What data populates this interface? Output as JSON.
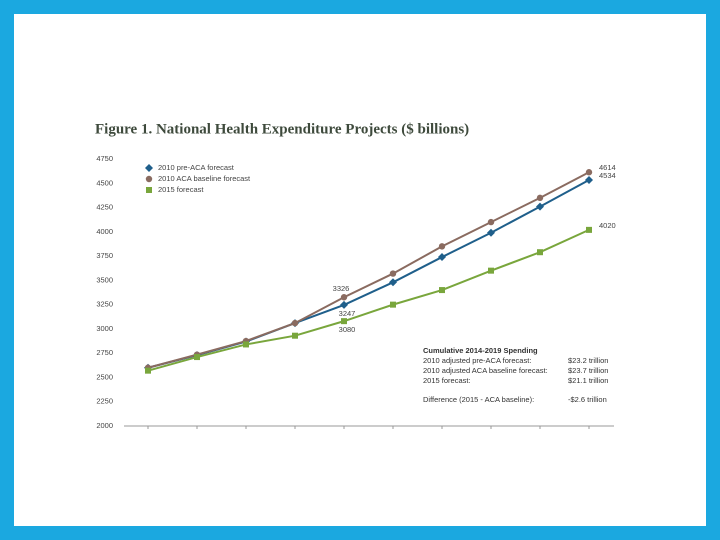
{
  "chart_data": {
    "type": "line",
    "title": "Figure 1. National Health Expenditure Projects ($ billions)",
    "categories": [
      null,
      null,
      null,
      null,
      null,
      null,
      null,
      null,
      null,
      null
    ],
    "ylim": [
      2000,
      4750
    ],
    "yticks": [
      2000,
      2250,
      2500,
      2750,
      3000,
      3250,
      3500,
      3750,
      4000,
      4250,
      4500,
      4750
    ],
    "legend": "top-left",
    "series": [
      {
        "name": "2010 pre-ACA forecast",
        "color": "#1f5f8b",
        "marker": "diamond",
        "labeled": [
          4,
          9
        ],
        "values": [
          2600,
          2730,
          2870,
          3060,
          3247,
          3480,
          3740,
          3990,
          4260,
          4534
        ]
      },
      {
        "name": "2010 ACA baseline forecast",
        "color": "#8a6b60",
        "marker": "circle",
        "labeled": [
          4,
          9
        ],
        "values": [
          2600,
          2735,
          2875,
          3060,
          3326,
          3570,
          3850,
          4100,
          4350,
          4614
        ]
      },
      {
        "name": "2015 forecast",
        "color": "#79a63c",
        "marker": "square",
        "labeled": [
          4,
          9
        ],
        "values": [
          2570,
          2710,
          2840,
          2930,
          3080,
          3250,
          3400,
          3600,
          3790,
          4020
        ]
      }
    ],
    "annotation": {
      "title": "Cumulative 2014-2019 Spending",
      "rows": [
        [
          "2010 adjusted pre-ACA forecast:",
          "$23.2 trillion"
        ],
        [
          "2010 adjusted ACA baseline forecast:",
          "$23.7 trillion"
        ],
        [
          "2015 forecast:",
          "$21.1 trillion"
        ],
        [
          "Difference (2015 - ACA baseline):",
          "-$2.6 trillion"
        ]
      ]
    }
  }
}
